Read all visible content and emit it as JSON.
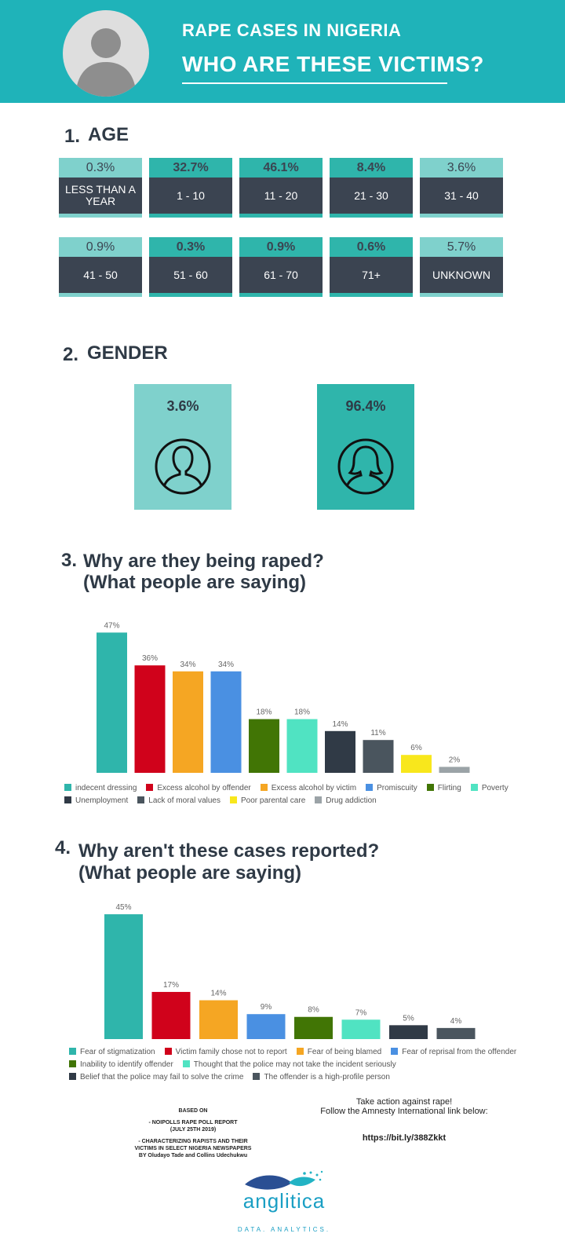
{
  "header": {
    "title": "RAPE CASES IN NIGERIA",
    "subtitle": "WHO ARE THESE VICTIMS?"
  },
  "sections": {
    "s1": {
      "num": "1.",
      "title": "AGE"
    },
    "s2": {
      "num": "2.",
      "title": "GENDER"
    },
    "s3": {
      "num": "3.",
      "title": "Why are they being raped?",
      "title2": "(What people are saying)"
    },
    "s4": {
      "num": "4.",
      "title": "Why aren't these cases reported?",
      "title2": "(What people are saying)"
    }
  },
  "age": [
    {
      "pct": "0.3%",
      "label": "LESS THAN A YEAR",
      "dark": false
    },
    {
      "pct": "32.7%",
      "label": "1 - 10",
      "dark": true
    },
    {
      "pct": "46.1%",
      "label": "11 - 20",
      "dark": true
    },
    {
      "pct": "8.4%",
      "label": "21 - 30",
      "dark": true
    },
    {
      "pct": "3.6%",
      "label": "31 - 40",
      "dark": false
    },
    {
      "pct": "0.9%",
      "label": "41 - 50",
      "dark": false
    },
    {
      "pct": "0.3%",
      "label": "51 - 60",
      "dark": true
    },
    {
      "pct": "0.9%",
      "label": "61 - 70",
      "dark": true
    },
    {
      "pct": "0.6%",
      "label": "71+",
      "dark": true
    },
    {
      "pct": "5.7%",
      "label": "UNKNOWN",
      "dark": false
    }
  ],
  "gender": {
    "male": {
      "pct": "3.6%",
      "icon": "male-icon",
      "color": "#7fd1cc"
    },
    "female": {
      "pct": "96.4%",
      "icon": "female-icon",
      "color": "#2fb5ab"
    }
  },
  "chart_data": [
    {
      "type": "bar",
      "title": "Why are they being raped?",
      "categories": [
        "indecent dressing",
        "Excess alcohol by offender",
        "Excess alcohol by victim",
        "Promiscuity",
        "Flirting",
        "Poverty",
        "Unemployment",
        "Lack of moral values",
        "Poor parental care",
        "Drug addiction"
      ],
      "values": [
        47,
        36,
        34,
        34,
        18,
        18,
        14,
        11,
        6,
        2
      ],
      "labels": [
        "47%",
        "36%",
        "34%",
        "34%",
        "18%",
        "18%",
        "14%",
        "11%",
        "6%",
        "2%"
      ],
      "colors": [
        "#2fb5ab",
        "#d0021b",
        "#f5a623",
        "#4a90e2",
        "#417505",
        "#50e3c2",
        "#303a46",
        "#4a555e",
        "#f8e71c",
        "#9ba3a7"
      ],
      "ylim": [
        0,
        50
      ],
      "grid": false,
      "legend": "bottom"
    },
    {
      "type": "bar",
      "title": "Why aren't these cases reported?",
      "categories": [
        "Fear of stigmatization",
        "Victim family chose not to report",
        "Fear of being blamed",
        "Fear of reprisal from the offender",
        "Inability to identify offender",
        "Thought that the police may not take the incident seriously",
        "Belief that the police may fail to solve the crime",
        "The offender is a high-profile person"
      ],
      "values": [
        45,
        17,
        14,
        9,
        8,
        7,
        5,
        4
      ],
      "labels": [
        "45%",
        "17%",
        "14%",
        "9%",
        "8%",
        "7%",
        "5%",
        "4%"
      ],
      "colors": [
        "#2fb5ab",
        "#d0021b",
        "#f5a623",
        "#4a90e2",
        "#417505",
        "#50e3c2",
        "#303a46",
        "#4a555e"
      ],
      "ylim": [
        0,
        47
      ],
      "grid": false,
      "legend": "bottom"
    }
  ],
  "footer": {
    "based_on": "BASED ON",
    "src1": "- NOIPOLLS RAPE POLL REPORT",
    "src1b": "(JULY 25TH 2019)",
    "src2": "- CHARACTERIZING RAPISTS AND THEIR",
    "src2b": "VICTIMS IN SELECT NIGERIA NEWSPAPERS",
    "src2c": "BY Oludayo Tade and Collins Udechukwu",
    "cta1": "Take action against rape!",
    "cta2": "Follow the Amnesty International link below:",
    "link": "https://bit.ly/388Zkkt"
  },
  "logo": {
    "name": "anglitica",
    "tagline": "DATA. ANALYTICS."
  }
}
